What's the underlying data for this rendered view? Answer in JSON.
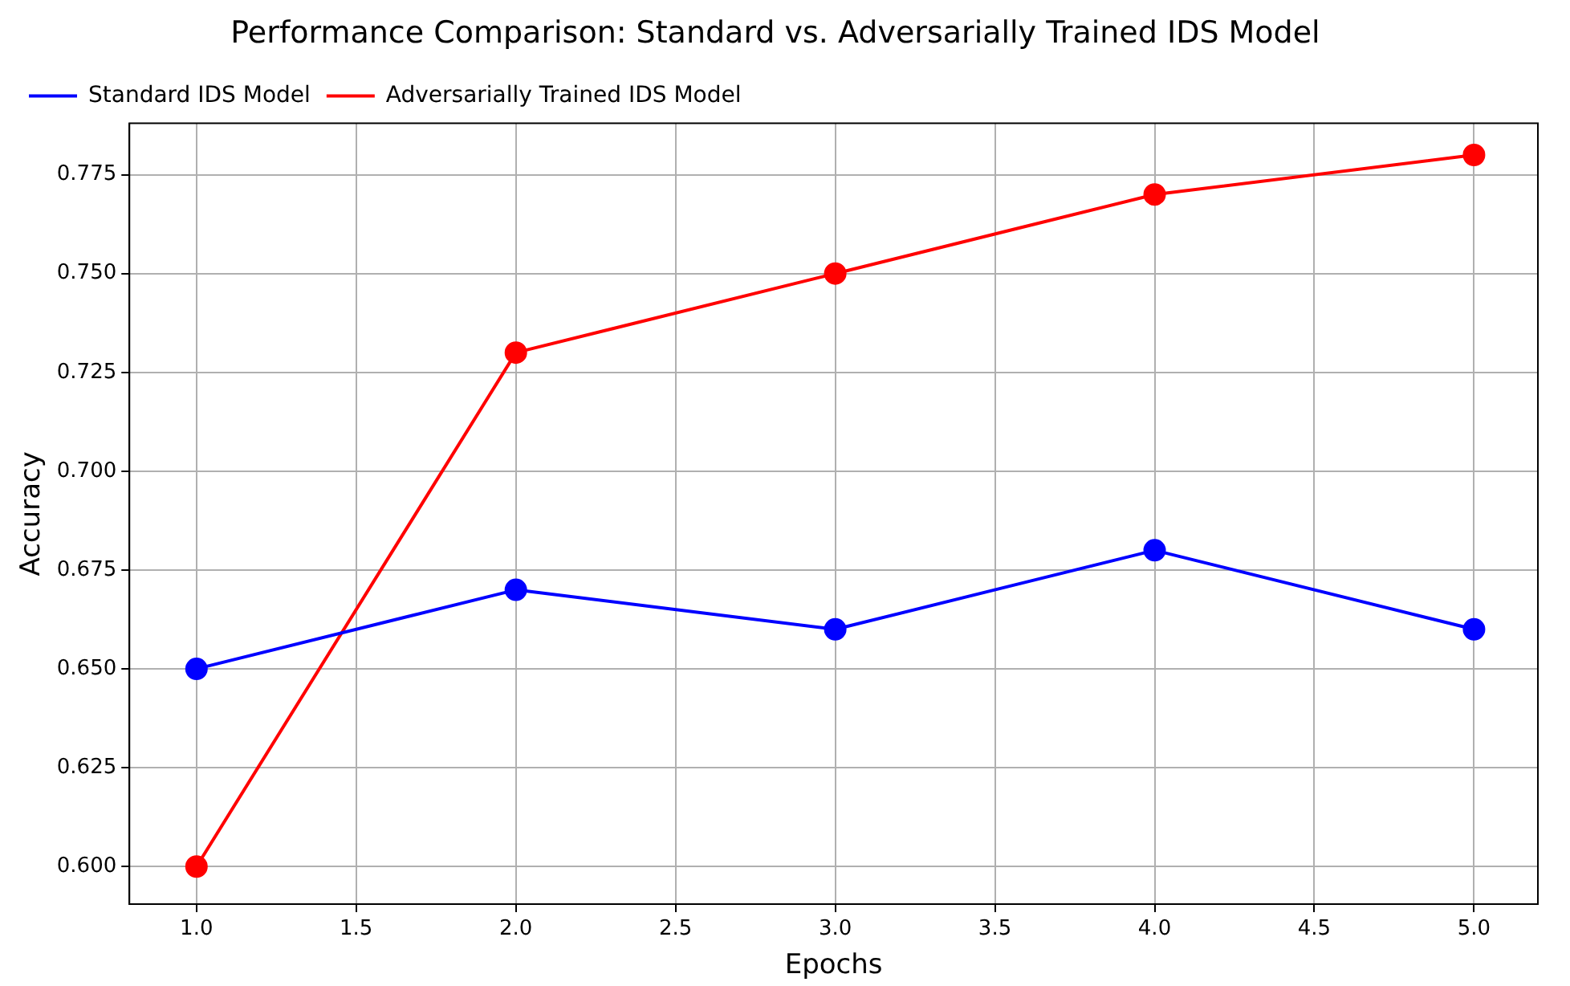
{
  "chart_data": {
    "type": "line",
    "title": "Performance Comparison: Standard vs. Adversarially Trained IDS Model",
    "xlabel": "Epochs",
    "ylabel": "Accuracy",
    "x": [
      1,
      2,
      3,
      4,
      5
    ],
    "series": [
      {
        "name": "Standard IDS Model",
        "color": "#0000ff",
        "values": [
          0.65,
          0.67,
          0.66,
          0.68,
          0.66
        ]
      },
      {
        "name": "Adversarially Trained IDS Model",
        "color": "#ff0000",
        "values": [
          0.6,
          0.73,
          0.75,
          0.77,
          0.78
        ]
      }
    ],
    "xlim": [
      0.79,
      5.2
    ],
    "xticks": [
      {
        "value": 1,
        "label": "1.0"
      },
      {
        "value": 1.5,
        "label": "1.5"
      },
      {
        "value": 2,
        "label": "2.0"
      },
      {
        "value": 2.5,
        "label": "2.5"
      },
      {
        "value": 3,
        "label": "3.0"
      },
      {
        "value": 3.5,
        "label": "3.5"
      },
      {
        "value": 4,
        "label": "4.0"
      },
      {
        "value": 4.5,
        "label": "4.5"
      },
      {
        "value": 5,
        "label": "5.0"
      }
    ],
    "ylim": [
      0.5905,
      0.788
    ],
    "yticks": [
      {
        "value": 0.6,
        "label": "0.600"
      },
      {
        "value": 0.625,
        "label": "0.625"
      },
      {
        "value": 0.65,
        "label": "0.650"
      },
      {
        "value": 0.675,
        "label": "0.675"
      },
      {
        "value": 0.7,
        "label": "0.700"
      },
      {
        "value": 0.725,
        "label": "0.725"
      },
      {
        "value": 0.75,
        "label": "0.750"
      },
      {
        "value": 0.775,
        "label": "0.775"
      }
    ],
    "grid": true,
    "legend": "top left",
    "marker": "circle",
    "line_style": "solid"
  }
}
